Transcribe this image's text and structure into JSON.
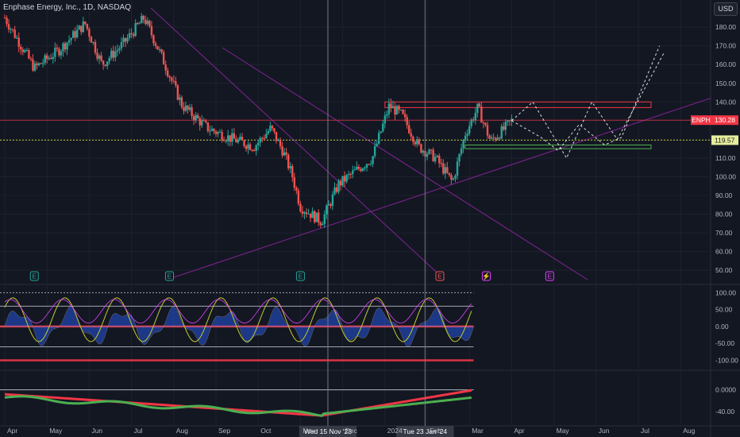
{
  "header": {
    "title": "Enphase Energy, Inc., 1D, NASDAQ",
    "currency": "USD"
  },
  "colors": {
    "background": "#131722",
    "up": "#26a69a",
    "down": "#ef5350",
    "grid": "#1e222d",
    "trendline": "#9c27b0",
    "resistance": "#f23645",
    "support": "#4caf50",
    "projection": "#ffffff",
    "crosshair": "#787b86"
  },
  "chart_data": [
    {
      "type": "candlestick",
      "name": "ENPH",
      "x_axis_labels": [
        "Apr",
        "May",
        "Jun",
        "Jul",
        "Aug",
        "Sep",
        "Oct",
        "Nov",
        "Dec",
        "2024",
        "Feb",
        "Mar",
        "Apr",
        "May",
        "Jun",
        "Jul",
        "Aug"
      ],
      "y_axis_labels": [
        "180.00",
        "170.00",
        "160.00",
        "150.00",
        "140.00",
        "130.00",
        "120.00",
        "110.00",
        "100.00",
        "90.00",
        "80.00",
        "70.00",
        "60.00",
        "50.00"
      ],
      "ylim": [
        45,
        186
      ],
      "last_price_label": "130.28",
      "last_price_value": 130.28,
      "symbol_tag": "ENPH",
      "reference_price_label": "119.57",
      "reference_price_value": 119.57,
      "crosshair_labels": [
        "Wed 15 Nov '23",
        "Tue 23 Jan '24"
      ],
      "event_markers": [
        "E",
        "E",
        "E",
        "E",
        "⚡",
        "E"
      ],
      "resistance_zone": [
        137,
        140
      ],
      "support_zone": [
        115,
        117
      ],
      "anchors": [
        {
          "month": 0,
          "price": 185
        },
        {
          "month": 0.7,
          "price": 158
        },
        {
          "month": 1.3,
          "price": 168
        },
        {
          "month": 1.9,
          "price": 182
        },
        {
          "month": 2.3,
          "price": 160
        },
        {
          "month": 2.8,
          "price": 171
        },
        {
          "month": 3.3,
          "price": 185
        },
        {
          "month": 3.7,
          "price": 165
        },
        {
          "month": 4.2,
          "price": 138
        },
        {
          "month": 4.8,
          "price": 126
        },
        {
          "month": 5.3,
          "price": 121
        },
        {
          "month": 5.9,
          "price": 116
        },
        {
          "month": 6.3,
          "price": 126
        },
        {
          "month": 6.6,
          "price": 113
        },
        {
          "month": 6.8,
          "price": 101
        },
        {
          "month": 7.0,
          "price": 84
        },
        {
          "month": 7.5,
          "price": 76
        },
        {
          "month": 7.9,
          "price": 96
        },
        {
          "month": 8.3,
          "price": 103
        },
        {
          "month": 8.7,
          "price": 110
        },
        {
          "month": 9.1,
          "price": 138
        },
        {
          "month": 9.4,
          "price": 133
        },
        {
          "month": 9.8,
          "price": 116
        },
        {
          "month": 10.2,
          "price": 110
        },
        {
          "month": 10.6,
          "price": 97
        },
        {
          "month": 10.9,
          "price": 123
        },
        {
          "month": 11.2,
          "price": 137
        },
        {
          "month": 11.5,
          "price": 119
        },
        {
          "month": 11.8,
          "price": 125
        },
        {
          "month": 12.0,
          "price": 130
        }
      ]
    },
    {
      "type": "oscillator",
      "y_axis_labels": [
        "100.00",
        "50.00",
        "0.00",
        "-50.00",
        "-100.00"
      ],
      "ylim": [
        -120,
        115
      ],
      "levels": [
        100,
        60,
        0,
        -60,
        -100
      ]
    },
    {
      "type": "line",
      "y_axis_labels": [
        "0.0000",
        "-40.00"
      ],
      "ylim": [
        -60,
        30
      ],
      "series": [
        {
          "name": "",
          "color": "#4caf50"
        },
        {
          "name": "",
          "color": "#f23645"
        }
      ]
    }
  ]
}
